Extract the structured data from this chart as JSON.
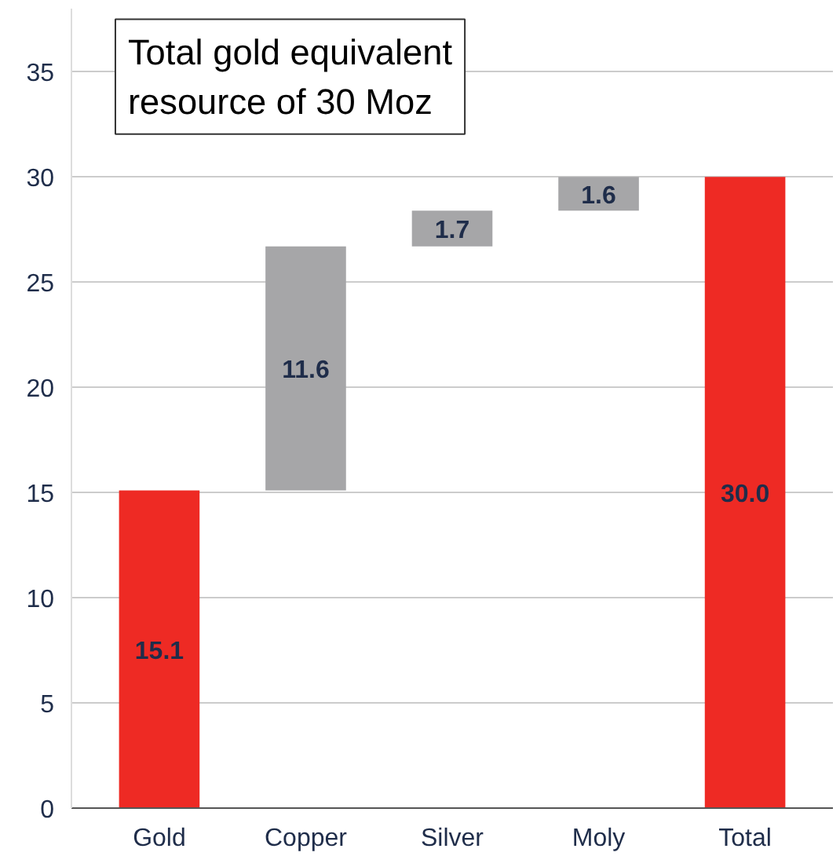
{
  "chart_data": {
    "type": "bar",
    "title": "Total gold equivalent\nresource of 30 Moz",
    "categories": [
      "Gold",
      "Copper",
      "Silver",
      "Moly",
      "Total"
    ],
    "values": [
      15.1,
      11.6,
      1.7,
      1.6,
      30.0
    ],
    "base": [
      0,
      15.1,
      26.7,
      28.4,
      0
    ],
    "colors": [
      "#ee2a24",
      "#a6a6a8",
      "#a6a6a8",
      "#a6a6a8",
      "#ee2a24"
    ],
    "value_labels": [
      "15.1",
      "11.6",
      "1.7",
      "1.6",
      "30.0"
    ],
    "ylim": [
      0,
      38
    ],
    "yticks": [
      0,
      5,
      10,
      15,
      20,
      25,
      30,
      35
    ],
    "grid": "y"
  }
}
